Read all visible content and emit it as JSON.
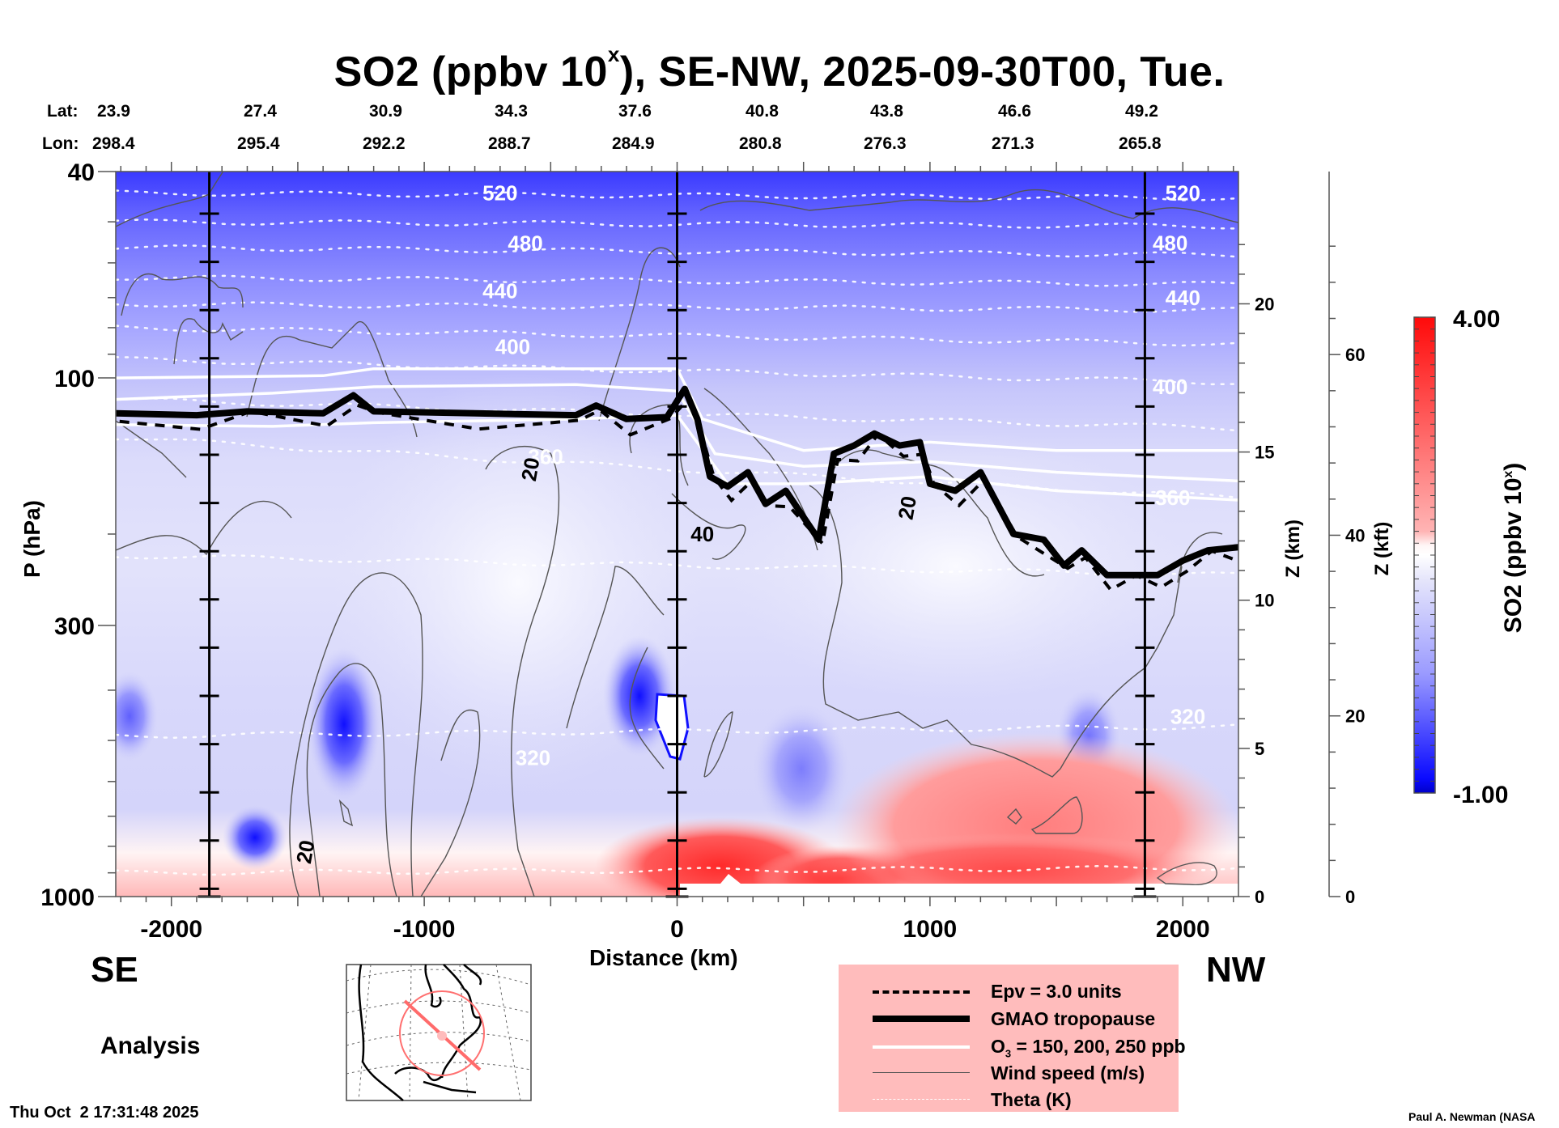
{
  "header": {
    "title_main": "SO2 (ppbv 10",
    "title_sup": "x",
    "title_rest": "), SE-NW, 2025-09-30T00, Tue."
  },
  "latlon": {
    "lat_label": "Lat:",
    "lon_label": "Lon:",
    "points": [
      {
        "lat": "23.9",
        "lon": "298.4"
      },
      {
        "lat": "27.4",
        "lon": "295.4"
      },
      {
        "lat": "30.9",
        "lon": "292.2"
      },
      {
        "lat": "34.3",
        "lon": "288.7"
      },
      {
        "lat": "37.6",
        "lon": "284.9"
      },
      {
        "lat": "40.8",
        "lon": "280.8"
      },
      {
        "lat": "43.8",
        "lon": "276.3"
      },
      {
        "lat": "46.6",
        "lon": "271.3"
      },
      {
        "lat": "49.2",
        "lon": "265.8"
      }
    ]
  },
  "labels": {
    "direction_left": "SE",
    "direction_right": "NW",
    "analysis": "Analysis",
    "timestamp": "Thu Oct  2 17:31:48 2025",
    "credit": "Paul A. Newman (NASA"
  },
  "legend": {
    "items": [
      {
        "style": "dashed",
        "text": "Epv = 3.0 units"
      },
      {
        "style": "thick",
        "text": "GMAO tropopause"
      },
      {
        "style": "white",
        "text_pre": "O",
        "text_sub": "3",
        "text_post": " = 150, 200, 250 ppb"
      },
      {
        "style": "thin",
        "text": "Wind speed (m/s)"
      },
      {
        "style": "dotted",
        "text": "Theta (K)"
      }
    ]
  },
  "colors": {
    "legend_bg": "#ffbcbc",
    "so2_low": "#0000ff",
    "so2_mid": "#ffffff",
    "so2_high": "#ff0000"
  },
  "chart_data": {
    "type": "heatmap",
    "title": "SO2 (ppbv 10^x), SE-NW, 2025-09-30T00, Tue.",
    "xlabel": "Distance (km)",
    "ylabel": "P (hPa)",
    "y2label": "Z (km)",
    "y3label": "Z (kft)",
    "colorbar_label": "SO2 (ppbv 10^x)",
    "xlim": [
      -2220,
      2220
    ],
    "ylim_hpa": [
      1000,
      40
    ],
    "x_ticks": [
      -2000,
      -1000,
      0,
      1000,
      2000
    ],
    "y_ticks_hpa": [
      40,
      100,
      300,
      1000
    ],
    "z_km_ticks": [
      0,
      5,
      10,
      15,
      20
    ],
    "z_kft_ticks": [
      0,
      20,
      40,
      60
    ],
    "colorbar_range": [
      -1.0,
      4.0
    ],
    "colorbar_tick_labels": [
      "4.00",
      "-1.00"
    ],
    "section_markers_km": [
      -1850,
      0,
      1850
    ],
    "theta_levels_K": [
      320,
      360,
      400,
      440,
      480,
      520
    ],
    "theta_labels": [
      {
        "value": "520",
        "x_km": -700,
        "p_hpa": 44
      },
      {
        "value": "480",
        "x_km": -600,
        "p_hpa": 55
      },
      {
        "value": "440",
        "x_km": -700,
        "p_hpa": 68
      },
      {
        "value": "400",
        "x_km": -650,
        "p_hpa": 87
      },
      {
        "value": "360",
        "x_km": -520,
        "p_hpa": 142
      },
      {
        "value": "320",
        "x_km": -570,
        "p_hpa": 540
      },
      {
        "value": "520",
        "x_km": 2000,
        "p_hpa": 44
      },
      {
        "value": "480",
        "x_km": 1950,
        "p_hpa": 55
      },
      {
        "value": "440",
        "x_km": 2000,
        "p_hpa": 70
      },
      {
        "value": "400",
        "x_km": 1950,
        "p_hpa": 104
      },
      {
        "value": "360",
        "x_km": 1960,
        "p_hpa": 170
      },
      {
        "value": "320",
        "x_km": 2020,
        "p_hpa": 450
      }
    ],
    "wind_labels": [
      {
        "value": "20",
        "x_km": -580,
        "p_hpa": 150
      },
      {
        "value": "40",
        "x_km": 100,
        "p_hpa": 200
      },
      {
        "value": "20",
        "x_km": 910,
        "p_hpa": 178
      },
      {
        "value": "20",
        "x_km": -1470,
        "p_hpa": 820
      }
    ],
    "tropopause_hpa": [
      [
        -2220,
        117
      ],
      [
        -1900,
        118
      ],
      [
        -1700,
        116
      ],
      [
        -1400,
        117
      ],
      [
        -1280,
        108
      ],
      [
        -1200,
        116
      ],
      [
        -800,
        117
      ],
      [
        -400,
        118
      ],
      [
        -320,
        113
      ],
      [
        -200,
        120
      ],
      [
        -40,
        119
      ],
      [
        30,
        105
      ],
      [
        80,
        120
      ],
      [
        130,
        155
      ],
      [
        200,
        162
      ],
      [
        280,
        152
      ],
      [
        350,
        175
      ],
      [
        430,
        165
      ],
      [
        560,
        205
      ],
      [
        620,
        140
      ],
      [
        700,
        135
      ],
      [
        780,
        128
      ],
      [
        880,
        135
      ],
      [
        960,
        133
      ],
      [
        1000,
        160
      ],
      [
        1100,
        165
      ],
      [
        1200,
        152
      ],
      [
        1330,
        200
      ],
      [
        1450,
        205
      ],
      [
        1530,
        230
      ],
      [
        1600,
        215
      ],
      [
        1700,
        240
      ],
      [
        1800,
        240
      ],
      [
        1900,
        240
      ],
      [
        2000,
        225
      ],
      [
        2100,
        215
      ],
      [
        2220,
        212
      ]
    ],
    "o3_ppb_contours": [
      {
        "level": 150,
        "points": [
          [
            -2220,
            100
          ],
          [
            -1400,
            99
          ],
          [
            -1200,
            96
          ],
          [
            0,
            96
          ],
          [
            100,
            120
          ],
          [
            500,
            138
          ],
          [
            1000,
            133
          ],
          [
            1500,
            138
          ],
          [
            2220,
            138
          ]
        ]
      },
      {
        "level": 200,
        "points": [
          [
            -2220,
            110
          ],
          [
            -1600,
            107
          ],
          [
            -1200,
            104
          ],
          [
            -400,
            103
          ],
          [
            0,
            106
          ],
          [
            150,
            140
          ],
          [
            500,
            148
          ],
          [
            1000,
            145
          ],
          [
            1500,
            152
          ],
          [
            2220,
            158
          ]
        ]
      },
      {
        "level": 250,
        "points": [
          [
            -2220,
            123
          ],
          [
            -1600,
            124
          ],
          [
            -1200,
            122
          ],
          [
            -400,
            120
          ],
          [
            0,
            118
          ],
          [
            200,
            160
          ],
          [
            500,
            160
          ],
          [
            1000,
            155
          ],
          [
            1500,
            165
          ],
          [
            2220,
            172
          ]
        ]
      }
    ],
    "so2_description": "Values near -0.5 to 0 (blue/white) aloft; strongest blue near 40 hPa; red (surface) near 2-4 between 0 and 2200 km below ~700 hPa"
  }
}
